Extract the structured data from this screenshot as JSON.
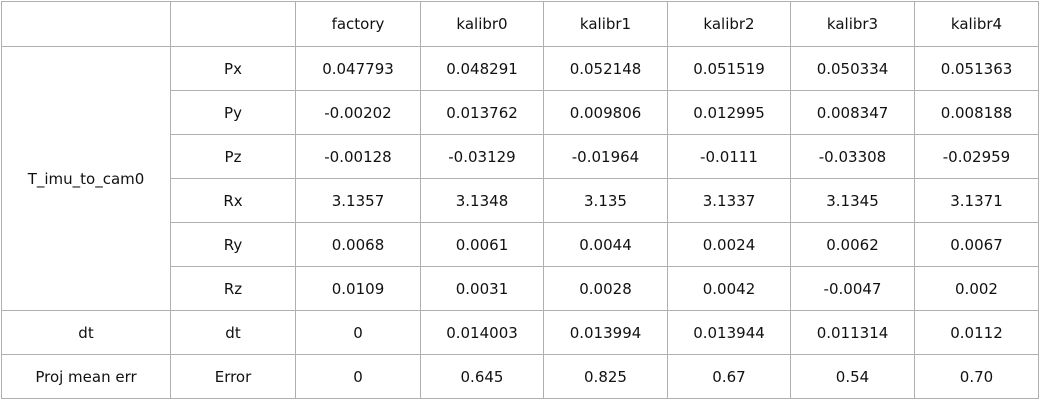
{
  "table": {
    "columns": [
      "factory",
      "kalibr0",
      "kalibr1",
      "kalibr2",
      "kalibr3",
      "kalibr4"
    ],
    "groups": [
      {
        "label": "T_imu_to_cam0",
        "rows": [
          {
            "label": "Px",
            "values": [
              "0.047793",
              "0.048291",
              "0.052148",
              "0.051519",
              "0.050334",
              "0.051363"
            ]
          },
          {
            "label": "Py",
            "values": [
              "-0.00202",
              "0.013762",
              "0.009806",
              "0.012995",
              "0.008347",
              "0.008188"
            ]
          },
          {
            "label": "Pz",
            "values": [
              "-0.00128",
              "-0.03129",
              "-0.01964",
              "-0.0111",
              "-0.03308",
              "-0.02959"
            ]
          },
          {
            "label": "Rx",
            "values": [
              "3.1357",
              "3.1348",
              "3.135",
              "3.1337",
              "3.1345",
              "3.1371"
            ]
          },
          {
            "label": "Ry",
            "values": [
              "0.0068",
              "0.0061",
              "0.0044",
              "0.0024",
              "0.0062",
              "0.0067"
            ]
          },
          {
            "label": "Rz",
            "values": [
              "0.0109",
              "0.0031",
              "0.0028",
              "0.0042",
              "-0.0047",
              "0.002"
            ]
          }
        ]
      },
      {
        "label": "dt",
        "rows": [
          {
            "label": "dt",
            "values": [
              "0",
              "0.014003",
              "0.013994",
              "0.013944",
              "0.011314",
              "0.0112"
            ]
          }
        ]
      },
      {
        "label": "Proj mean err",
        "rows": [
          {
            "label": "Error",
            "values": [
              "0",
              "0.645",
              "0.825",
              "0.67",
              "0.54",
              "0.70"
            ]
          }
        ]
      }
    ]
  }
}
